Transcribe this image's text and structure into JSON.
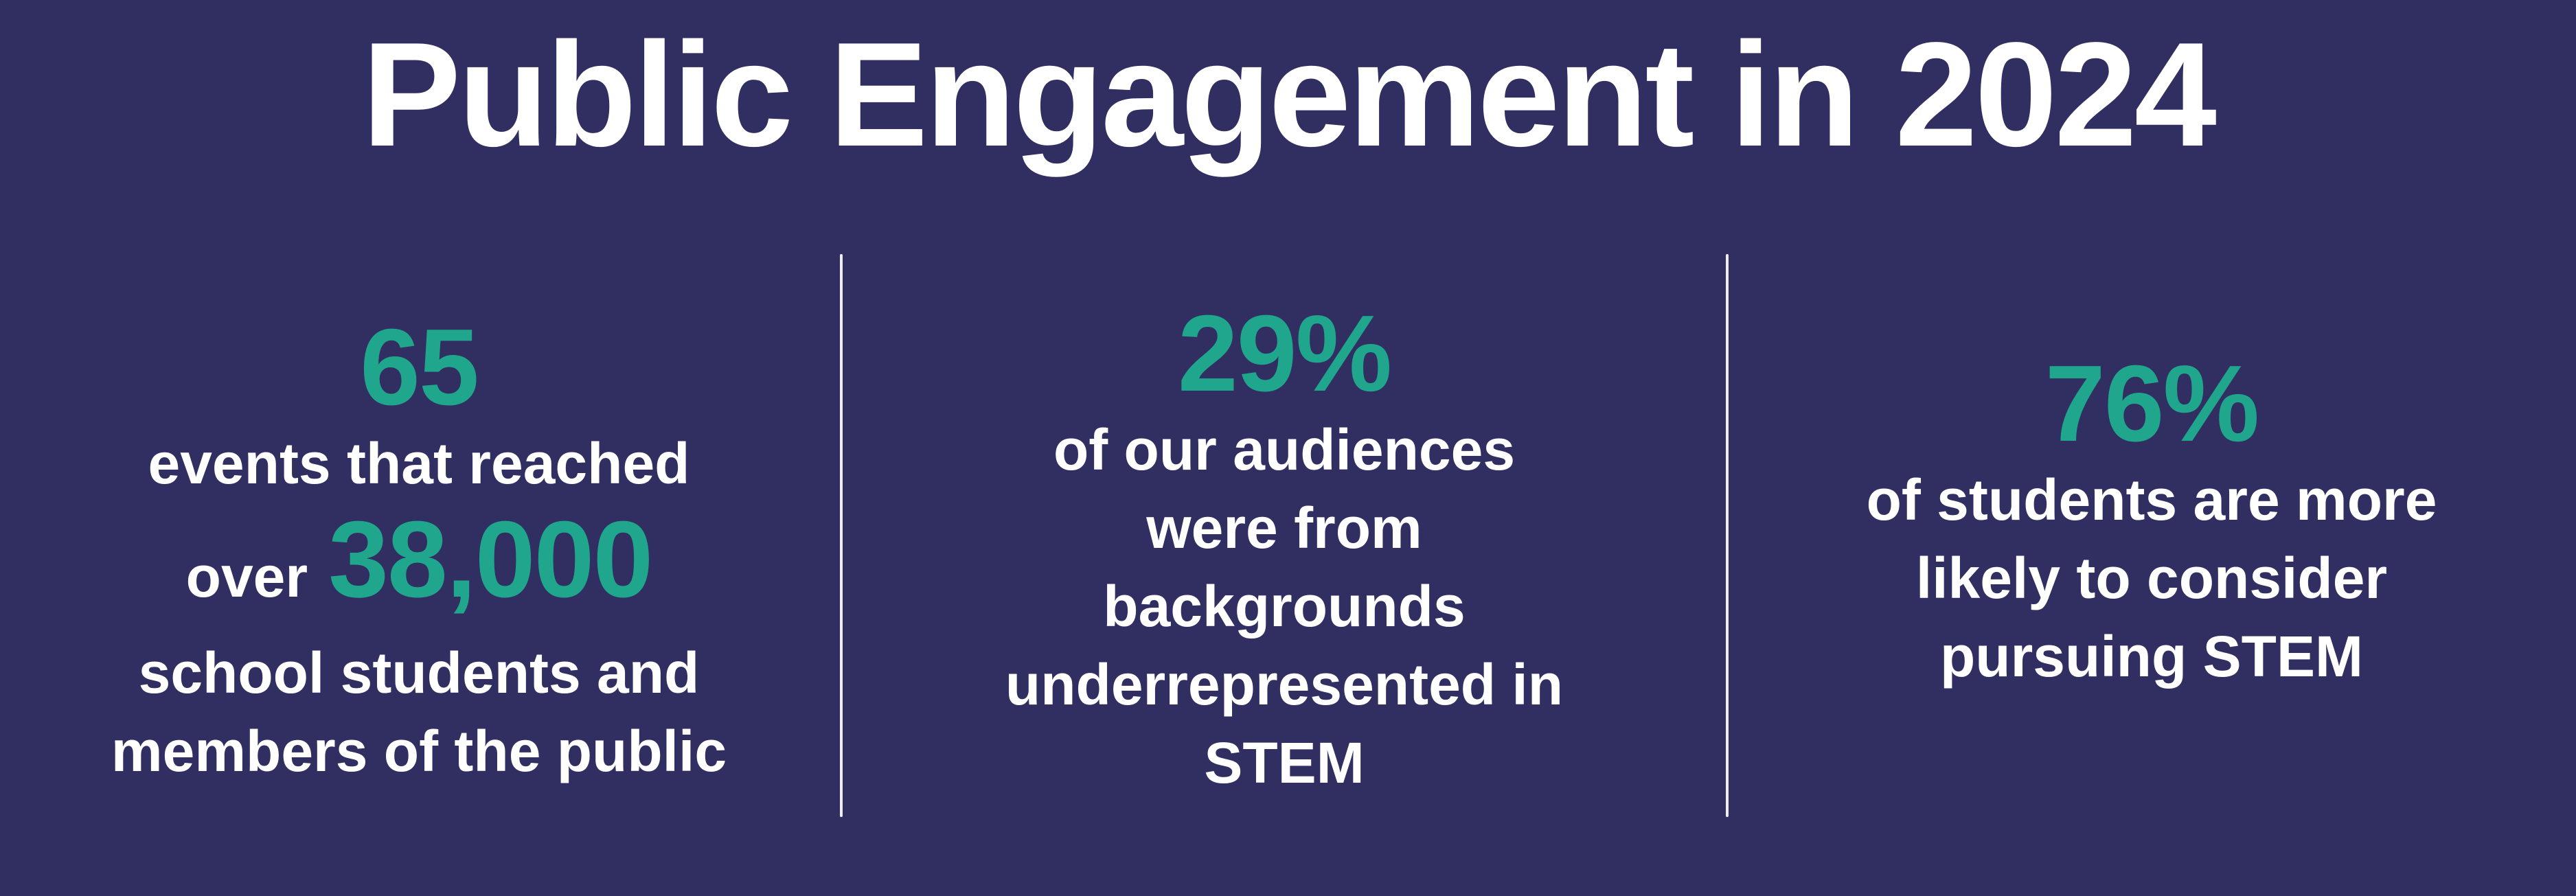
{
  "title": "Public Engagement in 2024",
  "colors": {
    "background": "#312E62",
    "accent_teal": "#1FA68C",
    "text_white": "#FFFFFF",
    "divider": "#EDEDF5"
  },
  "stats": [
    {
      "big": "65",
      "line_before_inline": "events that reached",
      "inline_prefix": "over",
      "inline_big": "38,000",
      "lines_after": [
        "school students and",
        "members of the public"
      ]
    },
    {
      "big": "29%",
      "lines": [
        "of our audiences",
        "were from",
        "backgrounds",
        "underrepresented in",
        "STEM"
      ]
    },
    {
      "big": "76%",
      "lines": [
        "of students are more",
        "likely to consider",
        "pursuing STEM"
      ]
    }
  ],
  "chart_data": {
    "type": "table",
    "title": "Public Engagement in 2024",
    "stats": [
      {
        "value": 65,
        "unit": "events",
        "secondary_value": 38000,
        "label": "events that reached over 38,000 school students and members of the public"
      },
      {
        "value": 29,
        "unit": "%",
        "label": "of our audiences were from backgrounds underrepresented in STEM"
      },
      {
        "value": 76,
        "unit": "%",
        "label": "of students are more likely to consider pursuing STEM"
      }
    ],
    "layout": "three stat columns separated by vertical rules, big numbers in teal, body text in white on navy"
  }
}
